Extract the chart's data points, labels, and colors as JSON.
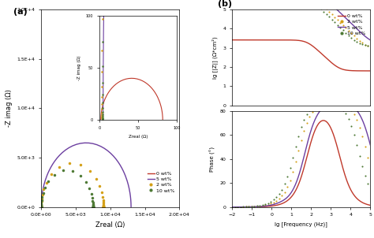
{
  "colors": {
    "wt0": "#c0392b",
    "wt2": "#d4a017",
    "wt5": "#6c3fa0",
    "wt10": "#4e7a35"
  },
  "nyquist_xlabel": "Zreal (Ω)",
  "nyquist_ylabel": "-Z imag (Ω)",
  "bode_top_ylabel": "lg [|Z|] (Ω*cm²)",
  "bode_bottom_ylabel": "Phase (°)",
  "bode_xlabel": "lg [Frequency (Hz)]",
  "panel_a_label": "(a)",
  "panel_b_label": "(b)"
}
